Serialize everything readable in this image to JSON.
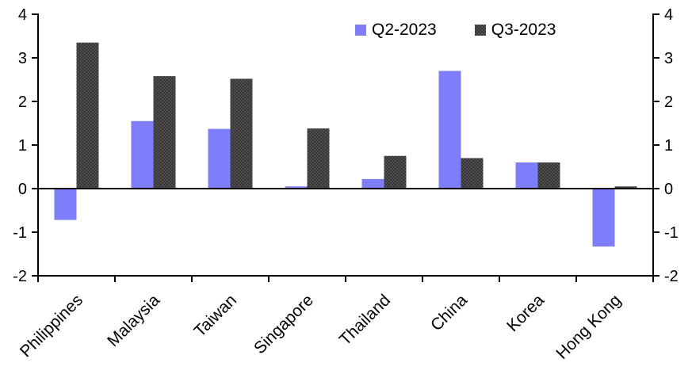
{
  "chart_data": {
    "type": "bar",
    "title": "",
    "xlabel": "",
    "ylabel": "",
    "categories": [
      "Philippines",
      "Malaysia",
      "Taiwan",
      "Singapore",
      "Thailand",
      "China",
      "Korea",
      "Hong Kong"
    ],
    "series": [
      {
        "name": "Q2-2023",
        "color": "#7e7efa",
        "values": [
          -0.72,
          1.55,
          1.37,
          0.05,
          0.22,
          2.7,
          0.6,
          -1.33
        ]
      },
      {
        "name": "Q3-2023",
        "color": "#3d3d3d",
        "pattern": true,
        "values": [
          3.35,
          2.58,
          2.52,
          1.38,
          0.75,
          0.7,
          0.6,
          0.05
        ]
      }
    ],
    "ylim": [
      -2,
      4
    ],
    "yticks": [
      4,
      3,
      2,
      1,
      0,
      -1,
      -2
    ],
    "y_axis_sides": [
      "left",
      "right"
    ],
    "grid": false,
    "zero_line": true,
    "legend_position": "top-center",
    "axis_color": "#000000",
    "background_color": "#ffffff"
  }
}
